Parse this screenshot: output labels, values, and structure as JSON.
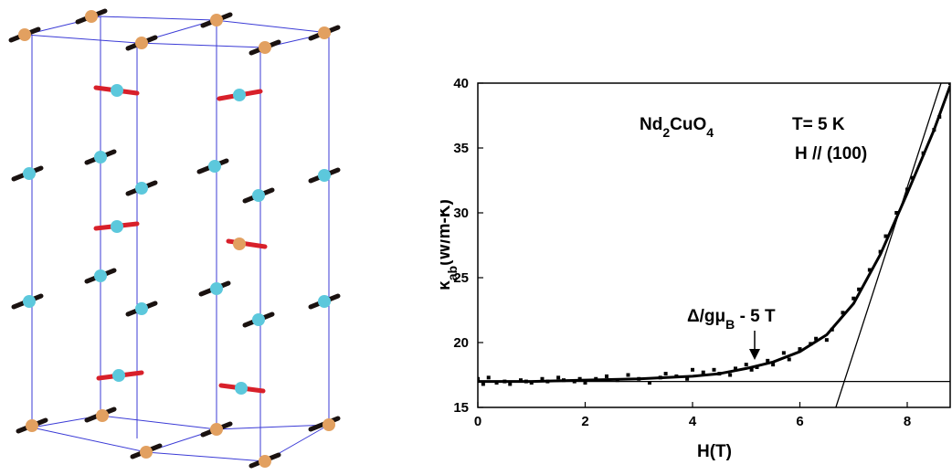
{
  "chart_data": {
    "type": "scatter",
    "xlim": [
      0,
      8.8
    ],
    "ylim": [
      15,
      40
    ],
    "xticks": [
      0,
      2,
      4,
      6,
      8
    ],
    "yticks": [
      15,
      20,
      25,
      30,
      35,
      40
    ],
    "x_label": "H(T)",
    "y_label": [
      {
        "text": "κ"
      },
      {
        "text": "ab",
        "sub": true
      },
      {
        "text": "(W/m-K)"
      }
    ],
    "annotations": [
      [
        {
          "text": "Nd"
        },
        {
          "text": "2",
          "sub": true
        },
        {
          "text": "CuO"
        },
        {
          "text": "4",
          "sub": true
        }
      ],
      [
        {
          "text": "T= 5 K"
        }
      ],
      [
        {
          "text": "H // (100)"
        }
      ],
      [
        {
          "text": "Δ/gμ"
        },
        {
          "text": "B",
          "sub": true
        },
        {
          "text": " - 5 T"
        }
      ]
    ],
    "series": [
      {
        "style": "points",
        "color": "#000000",
        "x": [
          0,
          0.1,
          0.2,
          0.35,
          0.5,
          0.6,
          0.8,
          0.9,
          1.0,
          1.2,
          1.3,
          1.5,
          1.6,
          1.8,
          1.9,
          2.0,
          2.2,
          2.4,
          2.6,
          2.8,
          3.0,
          3.2,
          3.4,
          3.5,
          3.7,
          3.9,
          4.0,
          4.2,
          4.4,
          4.5,
          4.7,
          4.8,
          5.0,
          5.1,
          5.2,
          5.4,
          5.5,
          5.7,
          5.8,
          6.0,
          6.2,
          6.3,
          6.5,
          6.6,
          6.8,
          7.0,
          7.1,
          7.3,
          7.5,
          7.6,
          7.8,
          8.0,
          8.1,
          8.3,
          8.5,
          8.6,
          8.8
        ],
        "values": [
          17.2,
          16.8,
          17.3,
          16.9,
          17.0,
          16.8,
          17.1,
          17.0,
          16.9,
          17.2,
          17.0,
          17.3,
          17.1,
          17.0,
          17.2,
          16.9,
          17.2,
          17.4,
          17.1,
          17.5,
          17.2,
          16.9,
          17.3,
          17.6,
          17.4,
          17.2,
          17.9,
          17.7,
          17.9,
          17.6,
          17.5,
          18.0,
          18.3,
          17.9,
          18.1,
          18.6,
          18.3,
          19.2,
          18.7,
          19.5,
          19.9,
          20.3,
          20.2,
          21.0,
          22.3,
          23.4,
          24.1,
          25.6,
          27.0,
          28.2,
          30.0,
          31.8,
          32.7,
          34.6,
          36.4,
          37.4,
          40.0
        ]
      },
      {
        "style": "line",
        "color": "#000000",
        "width": 3,
        "x": [
          0,
          1,
          2,
          3,
          4,
          4.5,
          5,
          5.5,
          6,
          6.5,
          7,
          7.5,
          8,
          8.5,
          8.8
        ],
        "values": [
          17.0,
          17.0,
          17.1,
          17.2,
          17.4,
          17.6,
          18.0,
          18.5,
          19.3,
          20.6,
          23.0,
          26.8,
          31.5,
          36.4,
          39.8
        ]
      },
      {
        "style": "line",
        "color": "#000000",
        "width": 1.3,
        "x": [
          0,
          8.8
        ],
        "values": [
          17,
          17
        ]
      },
      {
        "style": "line",
        "color": "#000000",
        "width": 1.3,
        "x": [
          6.67,
          8.63
        ],
        "values": [
          15,
          40
        ]
      }
    ]
  }
}
